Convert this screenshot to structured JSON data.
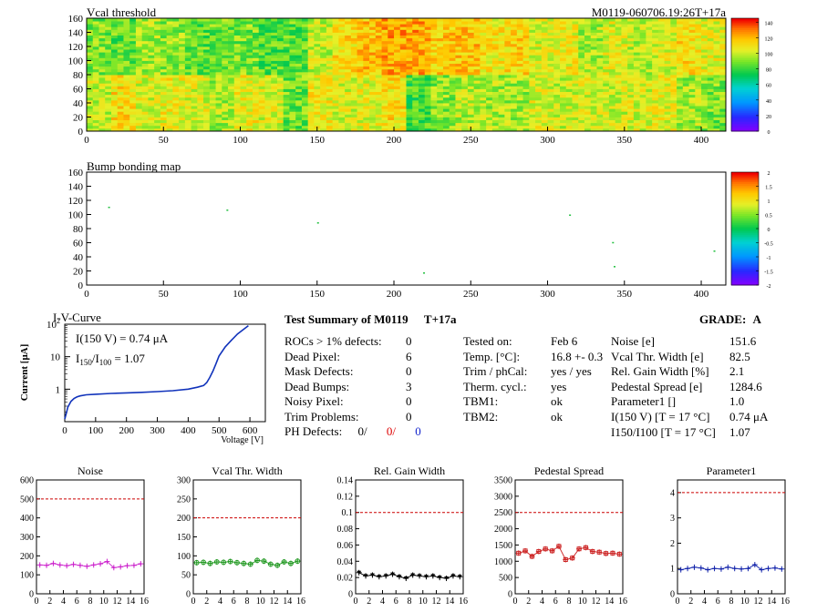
{
  "header": {
    "title": "Vcal threshold",
    "module_id": "M0119-060706.19:26T+17a"
  },
  "chart_data": [
    {
      "type": "heatmap",
      "title": "Vcal threshold",
      "xlim": [
        0,
        416
      ],
      "ylim": [
        0,
        160
      ],
      "xticks": [
        "0",
        "50",
        "100",
        "150",
        "200",
        "250",
        "300",
        "350",
        "400"
      ],
      "yticks": [
        "0",
        "20",
        "40",
        "60",
        "80",
        "100",
        "120",
        "140",
        "160"
      ],
      "zlim": [
        0,
        145
      ],
      "zticks": [
        "0",
        "20",
        "40",
        "60",
        "80",
        "100",
        "120",
        "140"
      ],
      "rows": [
        [
          101,
          112,
          104,
          108,
          104,
          96,
          108,
          104,
          88,
          108,
          104,
          106,
          112,
          82,
          92,
          98,
          96,
          96,
          104,
          100,
          104,
          102,
          104,
          106,
          96,
          90
        ],
        [
          90,
          86,
          96,
          92,
          86,
          88,
          90,
          84,
          86,
          100,
          112,
          118,
          124,
          124,
          116,
          118,
          110,
          114,
          104,
          108,
          96,
          104,
          98,
          104,
          112,
          106
        ]
      ]
    },
    {
      "type": "heatmap",
      "title": "Bump bonding map",
      "xlim": [
        0,
        416
      ],
      "ylim": [
        0,
        160
      ],
      "xticks": [
        "0",
        "50",
        "100",
        "150",
        "200",
        "250",
        "300",
        "350",
        "400"
      ],
      "yticks": [
        "0",
        "20",
        "40",
        "60",
        "80",
        "100",
        "120",
        "140",
        "160"
      ],
      "zlim": [
        -2,
        2
      ],
      "zticks": [
        "-2",
        "-1.5",
        "-1",
        "-0.5",
        "0",
        "0.5",
        "1",
        "1.5",
        "2"
      ],
      "points": [
        [
          14,
          111
        ],
        [
          91,
          107
        ],
        [
          150,
          89
        ],
        [
          219,
          18
        ],
        [
          314,
          100
        ],
        [
          342,
          61
        ],
        [
          343,
          27
        ],
        [
          408,
          49
        ]
      ]
    },
    {
      "type": "line",
      "title": "I-V-Curve",
      "xlabel": "Voltage [V]",
      "ylabel": "Current [μA]",
      "xlim": [
        0,
        650
      ],
      "xticks": [
        "0",
        "100",
        "200",
        "300",
        "400",
        "500",
        "600"
      ],
      "ylog": true,
      "ylim": [
        0.1,
        100
      ],
      "annotations": [
        "I(150 V) = 0.74 μA",
        "I150/I100 = 1.07"
      ],
      "x": [
        0,
        5,
        10,
        20,
        30,
        40,
        50,
        70,
        100,
        150,
        200,
        250,
        300,
        350,
        400,
        430,
        450,
        460,
        470,
        480,
        490,
        500,
        520,
        540,
        560,
        580,
        595
      ],
      "y": [
        0.12,
        0.18,
        0.28,
        0.42,
        0.52,
        0.58,
        0.62,
        0.67,
        0.7,
        0.74,
        0.77,
        0.8,
        0.84,
        0.9,
        1.0,
        1.15,
        1.3,
        1.6,
        2.3,
        3.6,
        6.0,
        10.5,
        20,
        32,
        50,
        70,
        90
      ]
    },
    {
      "type": "scatter",
      "title": "Noise",
      "xlim": [
        0,
        16
      ],
      "ylim": [
        0,
        600
      ],
      "xticks": [
        "0",
        "2",
        "4",
        "6",
        "8",
        "10",
        "12",
        "14",
        "16"
      ],
      "yticks": [
        "0",
        "100",
        "200",
        "300",
        "400",
        "500",
        "600"
      ],
      "threshold": 500,
      "x": [
        0.5,
        1.5,
        2.5,
        3.5,
        4.5,
        5.5,
        6.5,
        7.5,
        8.5,
        9.5,
        10.5,
        11.5,
        12.5,
        13.5,
        14.5,
        15.5
      ],
      "y": [
        152,
        150,
        160,
        152,
        148,
        155,
        150,
        145,
        152,
        158,
        170,
        138,
        142,
        148,
        150,
        158
      ]
    },
    {
      "type": "scatter",
      "title": "Vcal Thr. Width",
      "xlim": [
        0,
        16
      ],
      "ylim": [
        0,
        300
      ],
      "xticks": [
        "0",
        "2",
        "4",
        "6",
        "8",
        "10",
        "12",
        "14",
        "16"
      ],
      "yticks": [
        "0",
        "50",
        "100",
        "150",
        "200",
        "250",
        "300"
      ],
      "threshold": 200,
      "x": [
        0.5,
        1.5,
        2.5,
        3.5,
        4.5,
        5.5,
        6.5,
        7.5,
        8.5,
        9.5,
        10.5,
        11.5,
        12.5,
        13.5,
        14.5,
        15.5
      ],
      "y": [
        82,
        83,
        80,
        84,
        83,
        85,
        82,
        80,
        78,
        88,
        86,
        78,
        75,
        84,
        80,
        86
      ]
    },
    {
      "type": "scatter",
      "title": "Rel. Gain Width",
      "xlim": [
        0,
        16
      ],
      "ylim": [
        0,
        0.14
      ],
      "xticks": [
        "0",
        "2",
        "4",
        "6",
        "8",
        "10",
        "12",
        "14",
        "16"
      ],
      "yticks": [
        "0",
        "0.02",
        "0.04",
        "0.06",
        "0.08",
        "0.1",
        "0.12",
        "0.14"
      ],
      "threshold": 0.1,
      "x": [
        0.5,
        1.5,
        2.5,
        3.5,
        4.5,
        5.5,
        6.5,
        7.5,
        8.5,
        9.5,
        10.5,
        11.5,
        12.5,
        13.5,
        14.5,
        15.5
      ],
      "y": [
        0.026,
        0.022,
        0.023,
        0.021,
        0.022,
        0.024,
        0.021,
        0.019,
        0.023,
        0.022,
        0.021,
        0.022,
        0.02,
        0.019,
        0.022,
        0.021
      ]
    },
    {
      "type": "scatter",
      "title": "Pedestal Spread",
      "xlim": [
        0,
        16
      ],
      "ylim": [
        0,
        3500
      ],
      "xticks": [
        "0",
        "2",
        "4",
        "6",
        "8",
        "10",
        "12",
        "14",
        "16"
      ],
      "yticks": [
        "0",
        "500",
        "1000",
        "1500",
        "2000",
        "2500",
        "3000",
        "3500"
      ],
      "threshold": 2500,
      "x": [
        0.5,
        1.5,
        2.5,
        3.5,
        4.5,
        5.5,
        6.5,
        7.5,
        8.5,
        9.5,
        10.5,
        11.5,
        12.5,
        13.5,
        14.5,
        15.5
      ],
      "y": [
        1250,
        1320,
        1150,
        1300,
        1380,
        1320,
        1460,
        1050,
        1100,
        1380,
        1420,
        1300,
        1280,
        1240,
        1250,
        1220
      ]
    },
    {
      "type": "scatter",
      "title": "Parameter1",
      "xlim": [
        0,
        16
      ],
      "ylim": [
        0,
        4.5
      ],
      "xticks": [
        "0",
        "2",
        "4",
        "6",
        "8",
        "10",
        "12",
        "14",
        "16"
      ],
      "yticks": [
        "0",
        "1",
        "2",
        "3",
        "4"
      ],
      "threshold": 4,
      "x": [
        0.5,
        1.5,
        2.5,
        3.5,
        4.5,
        5.5,
        6.5,
        7.5,
        8.5,
        9.5,
        10.5,
        11.5,
        12.5,
        13.5,
        14.5,
        15.5
      ],
      "y": [
        0.95,
        1.0,
        1.05,
        1.02,
        0.95,
        1.0,
        0.98,
        1.05,
        1.0,
        0.98,
        1.0,
        1.15,
        0.95,
        1.0,
        1.02,
        0.98
      ]
    }
  ],
  "summary": {
    "heading": "Test Summary of M0119",
    "tag": "T+17a",
    "grade_label": "GRADE:",
    "grade": "A",
    "left": [
      {
        "label": "ROCs > 1% defects:",
        "value": "0"
      },
      {
        "label": "Dead Pixel:",
        "value": "6"
      },
      {
        "label": "Mask Defects:",
        "value": "0"
      },
      {
        "label": "Dead Bumps:",
        "value": "3"
      },
      {
        "label": "Noisy Pixel:",
        "value": "0"
      },
      {
        "label": "Trim Problems:",
        "value": "0"
      }
    ],
    "ph_label": "PH Defects:",
    "ph_values": [
      "0/",
      "0/",
      "0"
    ],
    "mid": [
      {
        "label": "Tested on:",
        "value": "Feb 6"
      },
      {
        "label": "Temp. [°C]:",
        "value": "16.8 +- 0.3"
      },
      {
        "label": "Trim / phCal:",
        "value": "yes / yes"
      },
      {
        "label": "Therm. cycl.:",
        "value": "yes"
      },
      {
        "label": "TBM1:",
        "value": "ok"
      },
      {
        "label": "TBM2:",
        "value": "ok"
      }
    ],
    "right": [
      {
        "label": "Noise [e]",
        "value": "151.6"
      },
      {
        "label": "Vcal Thr. Width [e]",
        "value": "82.5"
      },
      {
        "label": "Rel. Gain Width [%]",
        "value": "2.1"
      },
      {
        "label": "Pedestal Spread [e]",
        "value": "1284.6"
      },
      {
        "label": "Parameter1 []",
        "value": "1.0"
      },
      {
        "label": "I(150 V) [T = 17 °C]",
        "value": "0.74 μA"
      },
      {
        "label": "I150/I100 [T = 17 °C]",
        "value": "1.07"
      }
    ]
  },
  "colors": {
    "noise": "#cc22cc",
    "vcal_width": "#229922",
    "gain_width": "#000000",
    "pedestal": "#cc2222",
    "parameter1": "#1122aa",
    "iv_curve": "#1133bb",
    "threshold_line": "#cc0000"
  }
}
